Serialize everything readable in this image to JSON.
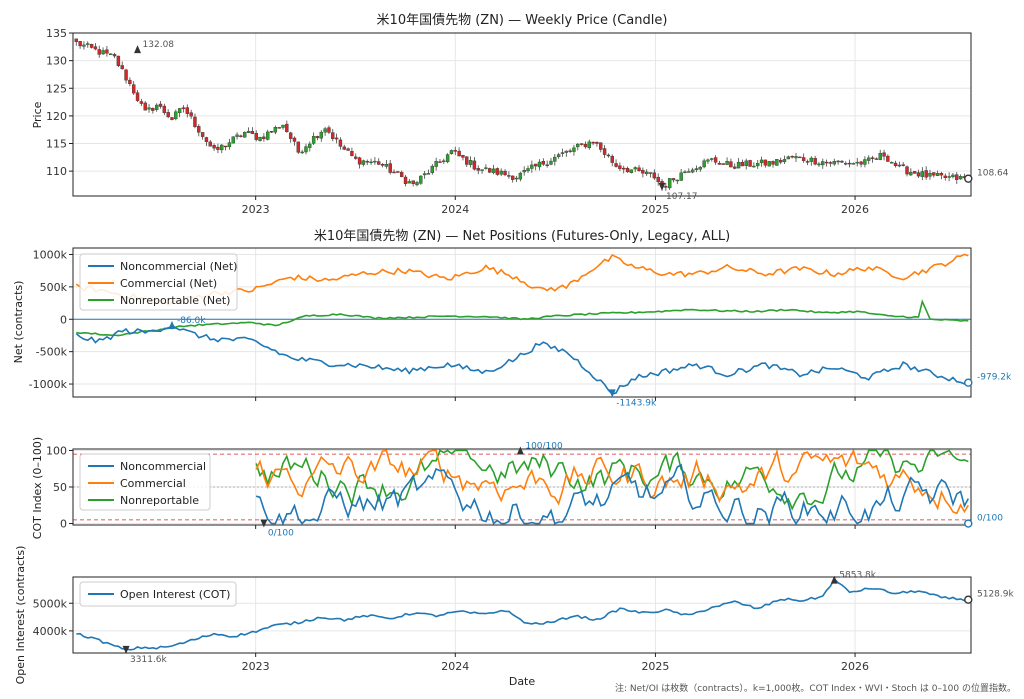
{
  "note": "注: Net/OI は枚数（contracts）。k=1,000枚。COT Index・WVI・Stoch は 0–100 の位置指数。",
  "colors": {
    "noncommercial": "#1f77b4",
    "commercial": "#ff7f0e",
    "nonreportable": "#2ca02c",
    "oi": "#1f77b4",
    "up": "#2ca02c",
    "down": "#d62728",
    "ref": "#d62728",
    "dark": "#333333"
  },
  "chart_data": [
    {
      "id": "price",
      "type": "candlestick",
      "title": "米10年国債先物 (ZN) — Weekly Price (Candle)",
      "xlabel": "",
      "ylabel": "Price",
      "xlim": [
        "2022-02-01",
        "2026-08-01"
      ],
      "ylim": [
        105.5,
        135
      ],
      "yticks": [
        110,
        115,
        120,
        125,
        130,
        135
      ],
      "xticks": [
        "2023",
        "2024",
        "2025",
        "2026"
      ],
      "grid": true,
      "anchors": {
        "dates": [
          "2022-02-07",
          "2022-04-18",
          "2022-05-23",
          "2022-06-13",
          "2022-07-04",
          "2022-08-01",
          "2022-08-22",
          "2022-10-17",
          "2022-12-12",
          "2023-01-09",
          "2023-02-20",
          "2023-03-20",
          "2023-05-08",
          "2023-06-05",
          "2023-07-03",
          "2023-08-14",
          "2023-10-16",
          "2023-12-25",
          "2024-02-12",
          "2024-04-22",
          "2024-06-10",
          "2024-07-01",
          "2024-09-09",
          "2024-10-21",
          "2024-12-30",
          "2025-01-13",
          "2025-03-03",
          "2025-04-14",
          "2025-05-19",
          "2025-08-04",
          "2025-09-08",
          "2025-10-13",
          "2025-11-24",
          "2026-01-19",
          "2026-02-23",
          "2026-03-23",
          "2026-05-18",
          "2026-07-27"
        ],
        "values": [
          133.2,
          130.5,
          124.5,
          120.5,
          122.0,
          119.5,
          121.5,
          113.5,
          117.0,
          116.0,
          118.5,
          113.5,
          118.0,
          114.5,
          112.0,
          111.5,
          107.5,
          113.5,
          110.5,
          109.0,
          111.5,
          112.5,
          115.5,
          111.0,
          109.0,
          107.2,
          110.5,
          112.0,
          111.0,
          111.5,
          112.5,
          112.0,
          111.5,
          111.5,
          113.0,
          110.5,
          109.0,
          108.6
        ]
      },
      "annotations": [
        {
          "text": "132.08",
          "date": "2022-05-30",
          "value": 132.08,
          "kind": "high"
        },
        {
          "text": "107.17",
          "date": "2025-01-13",
          "value": 107.17,
          "kind": "low"
        },
        {
          "text": "108.64",
          "date": "2026-07-27",
          "value": 108.64,
          "kind": "last"
        }
      ]
    },
    {
      "id": "net",
      "type": "line",
      "title": "米10年国債先物 (ZN) — Net Positions (Futures-Only, Legacy, ALL)",
      "xlabel": "",
      "ylabel": "Net (contracts)",
      "xlim": [
        "2022-02-01",
        "2026-08-01"
      ],
      "ylim": [
        -1200000,
        1100000
      ],
      "yticks": [
        -1000000,
        -500000,
        0,
        500000,
        1000000
      ],
      "ytick_labels": [
        "-1000k",
        "-500k",
        "0",
        "500k",
        "1000k"
      ],
      "grid": true,
      "legend": "top-left",
      "series": [
        {
          "name": "Noncommercial (Net)",
          "key": "noncommercial",
          "anchors": {
            "dates": [
              "2022-02-07",
              "2022-03-21",
              "2022-05-02",
              "2022-06-20",
              "2022-08-01",
              "2022-08-29",
              "2022-10-10",
              "2022-12-26",
              "2023-03-06",
              "2023-05-15",
              "2023-07-24",
              "2023-10-02",
              "2023-12-18",
              "2024-02-26",
              "2024-04-22",
              "2024-06-03",
              "2024-07-22",
              "2024-09-02",
              "2024-10-14",
              "2024-11-25",
              "2025-01-20",
              "2025-03-17",
              "2025-05-12",
              "2025-07-21",
              "2025-09-22",
              "2025-11-24",
              "2026-01-26",
              "2026-03-30",
              "2026-05-25",
              "2026-07-27"
            ],
            "values": [
              -250000,
              -350000,
              -180000,
              -200000,
              -86000,
              -200000,
              -300000,
              -330000,
              -600000,
              -680000,
              -720000,
              -800000,
              -700000,
              -820000,
              -600000,
              -380000,
              -500000,
              -800000,
              -1143900,
              -900000,
              -800000,
              -700000,
              -850000,
              -700000,
              -850000,
              -750000,
              -900000,
              -700000,
              -850000,
              -979200
            ]
          }
        },
        {
          "name": "Commercial (Net)",
          "key": "commercial",
          "anchors": {
            "dates": [
              "2022-02-07",
              "2022-03-21",
              "2022-05-02",
              "2022-06-20",
              "2022-08-01",
              "2022-10-10",
              "2022-12-26",
              "2023-03-06",
              "2023-05-15",
              "2023-07-24",
              "2023-10-02",
              "2023-12-18",
              "2024-02-26",
              "2024-04-22",
              "2024-06-03",
              "2024-07-22",
              "2024-09-02",
              "2024-10-14",
              "2024-11-25",
              "2025-01-20",
              "2025-03-17",
              "2025-05-12",
              "2025-07-21",
              "2025-09-22",
              "2025-11-24",
              "2026-01-26",
              "2026-03-30",
              "2026-05-25",
              "2026-07-27"
            ],
            "values": [
              500000,
              450000,
              380000,
              300000,
              250000,
              400000,
              450000,
              650000,
              600000,
              720000,
              750000,
              620000,
              800000,
              650000,
              450000,
              500000,
              750000,
              950000,
              800000,
              700000,
              700000,
              800000,
              700000,
              780000,
              700000,
              800000,
              650000,
              800000,
              1000000
            ]
          }
        },
        {
          "name": "Nonreportable (Net)",
          "key": "nonreportable",
          "anchors": {
            "dates": [
              "2022-02-07",
              "2022-04-18",
              "2022-06-20",
              "2022-08-29",
              "2022-10-10",
              "2022-12-26",
              "2023-02-06",
              "2023-04-03",
              "2023-06-05",
              "2023-08-07",
              "2023-10-16",
              "2023-12-18",
              "2024-03-04",
              "2024-05-06",
              "2024-07-01",
              "2024-09-02",
              "2024-11-04",
              "2025-01-06",
              "2025-03-03",
              "2025-05-05",
              "2025-07-07",
              "2025-09-01",
              "2025-11-03",
              "2026-01-05",
              "2026-03-02",
              "2026-04-27",
              "2026-05-04",
              "2026-05-18",
              "2026-07-27"
            ],
            "values": [
              -200000,
              -250000,
              -180000,
              -100000,
              -80000,
              -50000,
              -100000,
              50000,
              80000,
              20000,
              30000,
              50000,
              40000,
              0,
              50000,
              80000,
              100000,
              120000,
              150000,
              130000,
              120000,
              150000,
              100000,
              120000,
              50000,
              30000,
              270000,
              0,
              -30000
            ]
          }
        }
      ],
      "reference_line": 0,
      "annotations": [
        {
          "text": "-86.0k",
          "date": "2022-08-01",
          "value": -86000,
          "series": "noncommercial",
          "kind": "high"
        },
        {
          "text": "-1143.9k",
          "date": "2024-10-14",
          "value": -1143900,
          "series": "noncommercial",
          "kind": "low"
        },
        {
          "text": "-979.2k",
          "date": "2026-07-27",
          "value": -979200,
          "series": "noncommercial",
          "kind": "last"
        }
      ]
    },
    {
      "id": "cot_index",
      "type": "line",
      "title": "",
      "xlabel": "",
      "ylabel": "COT Index (0–100)",
      "xlim": [
        "2022-02-01",
        "2026-08-01"
      ],
      "ylim": [
        -2,
        102
      ],
      "yticks": [
        0,
        50,
        100
      ],
      "grid": true,
      "legend": "left",
      "thresholds": [
        5,
        50,
        95
      ],
      "start_date": "2023-01-02",
      "series": [
        {
          "name": "Noncommercial",
          "key": "noncommercial"
        },
        {
          "name": "Commercial",
          "key": "commercial"
        },
        {
          "name": "Nonreportable",
          "key": "nonreportable"
        }
      ],
      "annotations": [
        {
          "text": "100/100",
          "date": "2024-04-29",
          "value": 100,
          "kind": "high"
        },
        {
          "text": "0/100",
          "date": "2023-01-16",
          "value": 0,
          "kind": "low"
        },
        {
          "text": "0/100",
          "date": "2026-07-27",
          "value": 0,
          "kind": "last"
        }
      ]
    },
    {
      "id": "open_interest",
      "type": "line",
      "title": "",
      "xlabel": "Date",
      "ylabel": "Open Interest (contracts)",
      "xlim": [
        "2022-02-01",
        "2026-08-01"
      ],
      "ylim": [
        3200000,
        5950000
      ],
      "yticks": [
        4000000,
        5000000
      ],
      "ytick_labels": [
        "4000k",
        "5000k"
      ],
      "xticks": [
        "2023",
        "2024",
        "2025",
        "2026"
      ],
      "grid": true,
      "legend": "top-left",
      "series": [
        {
          "name": "Open Interest (COT)",
          "key": "oi",
          "anchors": {
            "dates": [
              "2022-02-07",
              "2022-03-07",
              "2022-04-11",
              "2022-05-09",
              "2022-06-06",
              "2022-07-04",
              "2022-08-01",
              "2022-09-05",
              "2022-10-17",
              "2022-11-21",
              "2022-12-26",
              "2023-02-06",
              "2023-03-20",
              "2023-05-01",
              "2023-06-12",
              "2023-07-24",
              "2023-09-04",
              "2023-10-16",
              "2023-11-27",
              "2024-01-08",
              "2024-02-19",
              "2024-04-01",
              "2024-05-13",
              "2024-06-24",
              "2024-08-05",
              "2024-09-16",
              "2024-10-28",
              "2024-12-09",
              "2025-01-20",
              "2025-03-03",
              "2025-04-14",
              "2025-05-26",
              "2025-07-07",
              "2025-08-18",
              "2025-09-29",
              "2025-11-03",
              "2025-11-24",
              "2025-12-22",
              "2026-02-02",
              "2026-03-16",
              "2026-04-27",
              "2026-06-08",
              "2026-07-27"
            ],
            "values": [
              3900000,
              3750000,
              3500000,
              3311600,
              3400000,
              3380000,
              3450000,
              3650000,
              3900000,
              3800000,
              3950000,
              4200000,
              4300000,
              4500000,
              4400000,
              4550000,
              4450000,
              4650000,
              4550000,
              4700000,
              4600000,
              4750000,
              4250000,
              4300000,
              4550000,
              4400000,
              4800000,
              4650000,
              4750000,
              4550000,
              4850000,
              5050000,
              4800000,
              5150000,
              5100000,
              5250000,
              5853800,
              5400000,
              5550000,
              5350000,
              5450000,
              5200000,
              5128900
            ]
          }
        }
      ],
      "annotations": [
        {
          "text": "5853.8k",
          "date": "2025-11-24",
          "value": 5853800,
          "kind": "high"
        },
        {
          "text": "3311.6k",
          "date": "2022-05-09",
          "value": 3311600,
          "kind": "low"
        },
        {
          "text": "5128.9k",
          "date": "2026-07-27",
          "value": 5128900,
          "kind": "last"
        }
      ]
    }
  ]
}
